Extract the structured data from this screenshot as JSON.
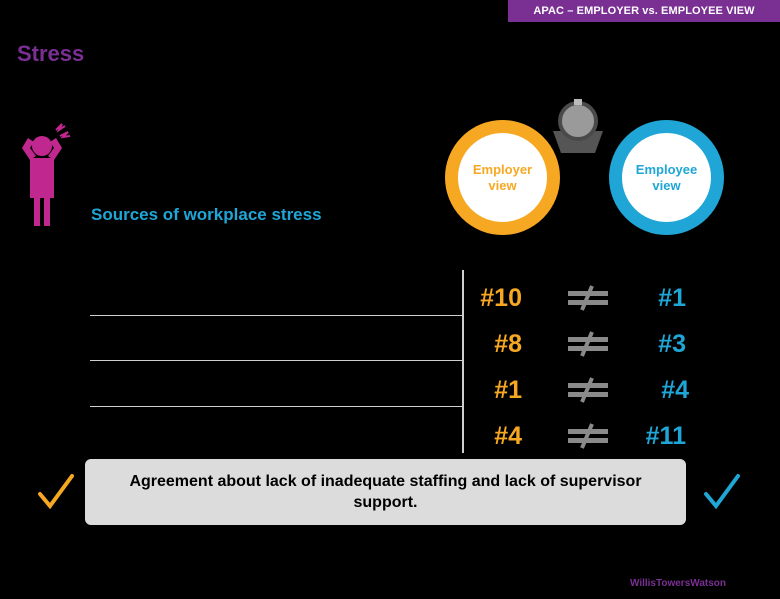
{
  "banner": "APAC – EMPLOYER vs. EMPLOYEE VIEW",
  "title": "Stress",
  "subtitle": "Sources of workplace stress",
  "employer_label": "Employer view",
  "employee_label": "Employee view",
  "rows": [
    {
      "employer_rank": "#10",
      "employee_rank": "#1"
    },
    {
      "employer_rank": "#8",
      "employee_rank": "#3"
    },
    {
      "employer_rank": "#1",
      "employee_rank": "#4"
    },
    {
      "employer_rank": "#4",
      "employee_rank": "#11"
    }
  ],
  "agreement": "Agreement about lack of inadequate staffing and lack of supervisor support.",
  "footer": "WillisTowersWatson",
  "colors": {
    "employer": "#f7a823",
    "employee": "#1fa6d6",
    "brand": "#7a2f93"
  },
  "icons": [
    "stressed-person-icon",
    "scale-icon",
    "not-equal-icon",
    "checkmark-icon"
  ]
}
